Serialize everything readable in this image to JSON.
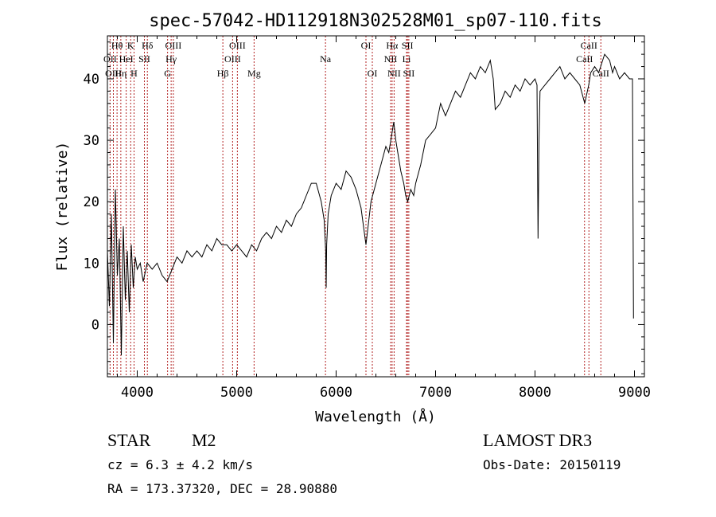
{
  "chart_data": {
    "type": "line",
    "title": "spec-57042-HD112918N302528M01_sp07-110.fits",
    "xlabel": "Wavelength (Å)",
    "ylabel": "Flux (relative)",
    "xlim": [
      3700,
      9100
    ],
    "ylim": [
      -8.5,
      47
    ],
    "xticks": [
      4000,
      5000,
      6000,
      7000,
      8000,
      9000
    ],
    "yticks": [
      0,
      10,
      20,
      30,
      40
    ],
    "grid": false,
    "line_color": "#000000",
    "marker_color": "#b22222",
    "spectrum": {
      "x": [
        3700,
        3720,
        3740,
        3760,
        3780,
        3800,
        3820,
        3840,
        3860,
        3880,
        3900,
        3920,
        3940,
        3960,
        3980,
        4000,
        4030,
        4060,
        4100,
        4150,
        4200,
        4250,
        4300,
        4350,
        4400,
        4450,
        4500,
        4550,
        4600,
        4650,
        4700,
        4750,
        4800,
        4850,
        4900,
        4950,
        5000,
        5050,
        5100,
        5150,
        5200,
        5250,
        5300,
        5350,
        5400,
        5450,
        5500,
        5550,
        5600,
        5650,
        5700,
        5750,
        5800,
        5850,
        5880,
        5895,
        5900,
        5905,
        5920,
        5950,
        6000,
        6050,
        6100,
        6150,
        6200,
        6250,
        6300,
        6350,
        6400,
        6450,
        6500,
        6530,
        6560,
        6580,
        6600,
        6620,
        6650,
        6680,
        6700,
        6720,
        6750,
        6780,
        6800,
        6850,
        6900,
        6950,
        7000,
        7050,
        7100,
        7150,
        7200,
        7250,
        7300,
        7350,
        7400,
        7450,
        7500,
        7550,
        7580,
        7600,
        7650,
        7700,
        7750,
        7800,
        7850,
        7900,
        7950,
        8000,
        8020,
        8030,
        8040,
        8050,
        8100,
        8150,
        8200,
        8250,
        8300,
        8350,
        8400,
        8450,
        8500,
        8540,
        8560,
        8600,
        8640,
        8660,
        8700,
        8750,
        8780,
        8800,
        8850,
        8900,
        8950,
        8980,
        8990
      ],
      "y": [
        12,
        3,
        18,
        -3,
        22,
        8,
        14,
        -5,
        16,
        4,
        12,
        2,
        13,
        6,
        11,
        9,
        10,
        7,
        10,
        9,
        10,
        8,
        7,
        9,
        11,
        10,
        12,
        11,
        12,
        11,
        13,
        12,
        14,
        13,
        13,
        12,
        13,
        12,
        11,
        13,
        12,
        14,
        15,
        14,
        16,
        15,
        17,
        16,
        18,
        19,
        21,
        23,
        23,
        20,
        17,
        12,
        6,
        13,
        18,
        21,
        23,
        22,
        25,
        24,
        22,
        19,
        13,
        20,
        23,
        26,
        29,
        28,
        31,
        33,
        30,
        28,
        25,
        23,
        21,
        20,
        22,
        21,
        23,
        26,
        30,
        31,
        32,
        36,
        34,
        36,
        38,
        37,
        39,
        41,
        40,
        42,
        41,
        43,
        40,
        35,
        36,
        38,
        37,
        39,
        38,
        40,
        39,
        40,
        39,
        14,
        30,
        38,
        39,
        40,
        41,
        42,
        40,
        41,
        40,
        39,
        36,
        39,
        41,
        42,
        41,
        42,
        44,
        43,
        41,
        42,
        40,
        41,
        40,
        40,
        1
      ]
    },
    "lines": [
      {
        "label": "Hθ",
        "x": 3797,
        "row": 0
      },
      {
        "label": "OII",
        "x": 3727,
        "row": 1
      },
      {
        "label": "OIII",
        "x": 3760,
        "row": 2
      },
      {
        "label": "K",
        "x": 3934,
        "row": 0
      },
      {
        "label": "HeI",
        "x": 3889,
        "row": 1
      },
      {
        "label": "Hη",
        "x": 3835,
        "row": 2
      },
      {
        "label": "Hδ",
        "x": 4102,
        "row": 0
      },
      {
        "label": "SII",
        "x": 4072,
        "row": 1
      },
      {
        "label": "H",
        "x": 3968,
        "row": 2
      },
      {
        "label": "OIII",
        "x": 4363,
        "row": 0
      },
      {
        "label": "Hγ",
        "x": 4341,
        "row": 1
      },
      {
        "label": "G",
        "x": 4305,
        "row": 2
      },
      {
        "label": "OIII",
        "x": 5007,
        "row": 0
      },
      {
        "label": "OIII",
        "x": 4959,
        "row": 1
      },
      {
        "label": "Hβ",
        "x": 4861,
        "row": 2
      },
      {
        "label": "Mg",
        "x": 5175,
        "row": 2
      },
      {
        "label": "Na",
        "x": 5893,
        "row": 1
      },
      {
        "label": "OI",
        "x": 6300,
        "row": 0
      },
      {
        "label": "OI",
        "x": 6364,
        "row": 2
      },
      {
        "label": "Hα",
        "x": 6563,
        "row": 0
      },
      {
        "label": "NII",
        "x": 6548,
        "row": 1
      },
      {
        "label": "NII",
        "x": 6583,
        "row": 2
      },
      {
        "label": "SII",
        "x": 6717,
        "row": 0
      },
      {
        "label": "Li",
        "x": 6708,
        "row": 1
      },
      {
        "label": "SII",
        "x": 6731,
        "row": 2
      },
      {
        "label": "CaII",
        "x": 8542,
        "row": 0
      },
      {
        "label": "CaII",
        "x": 8498,
        "row": 1
      },
      {
        "label": "CaII",
        "x": 8662,
        "row": 2
      }
    ]
  },
  "info": {
    "object_type": "STAR",
    "subclass": "M2",
    "survey": "LAMOST DR3",
    "cz": "cz = 6.3 ± 4.2 km/s",
    "obs_date": "Obs-Date: 20150119",
    "coords": "RA = 173.37320, DEC =  28.90880"
  }
}
